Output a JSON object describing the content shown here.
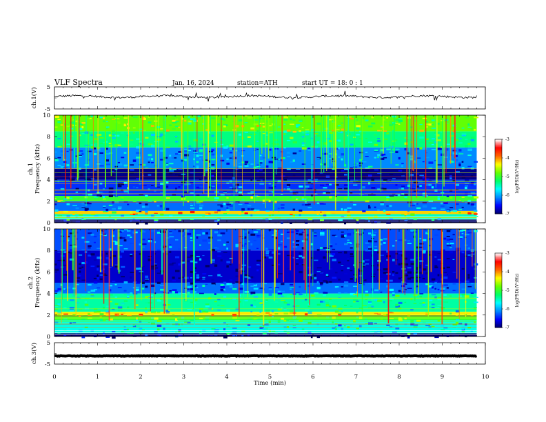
{
  "header": {
    "title": "VLF  Spectra",
    "date": "Jan. 16, 2024",
    "station": "station=ATH",
    "start_ut": "start  UT  =   18: 0  : 1"
  },
  "colors": {
    "spectrogram_scale": [
      "#000066",
      "#0000ff",
      "#0088ff",
      "#00ffff",
      "#00ff66",
      "#66ff00",
      "#ffff00",
      "#ff6600",
      "#ff0000",
      "#ffffff"
    ],
    "trace": "#000000"
  },
  "chart_data": [
    {
      "id": "ch1-waveform",
      "type": "line",
      "ylabel": "ch.1(V)",
      "ylim": [
        -5,
        5
      ],
      "y_ticks": [
        "5",
        "-5"
      ],
      "xlim": [
        0,
        10
      ],
      "approx_level": 0.6
    },
    {
      "id": "ch1-spectrogram",
      "type": "heatmap",
      "ylabel": "ch.1\nFrequency (kHz)",
      "ylabel_lines": [
        "ch.1",
        "Frequency (kHz)"
      ],
      "ylim": [
        0,
        10
      ],
      "y_ticks": [
        "0",
        "2",
        "4",
        "6",
        "8",
        "10"
      ],
      "xlim": [
        0,
        9.8
      ],
      "colorbar": {
        "label": "log(PSD)(V²/Hz)",
        "range": [
          -7,
          -3
        ],
        "ticks": [
          "-3",
          "-4",
          "-5",
          "-6",
          "-7"
        ]
      },
      "bands": [
        {
          "f_low": 0.0,
          "f_high": 0.3,
          "log_psd": -7.0
        },
        {
          "f_low": 0.3,
          "f_high": 0.8,
          "log_psd": -5.5
        },
        {
          "f_low": 0.8,
          "f_high": 1.1,
          "log_psd": -4.2
        },
        {
          "f_low": 1.1,
          "f_high": 2.0,
          "log_psd": -6.2
        },
        {
          "f_low": 2.0,
          "f_high": 2.5,
          "log_psd": -5.0
        },
        {
          "f_low": 2.5,
          "f_high": 4.0,
          "log_psd": -6.4
        },
        {
          "f_low": 4.0,
          "f_high": 5.0,
          "log_psd": -6.9
        },
        {
          "f_low": 5.0,
          "f_high": 7.0,
          "log_psd": -6.1
        },
        {
          "f_low": 7.0,
          "f_high": 8.5,
          "log_psd": -5.3
        },
        {
          "f_low": 8.5,
          "f_high": 10.0,
          "log_psd": -4.8
        }
      ],
      "sferic_density": 0.55
    },
    {
      "id": "ch2-spectrogram",
      "type": "heatmap",
      "ylabel": "ch.2\nFrequency (kHz)",
      "ylabel_lines": [
        "ch.2",
        "Frequency (kHz)"
      ],
      "ylim": [
        0,
        10
      ],
      "y_ticks": [
        "0",
        "2",
        "4",
        "6",
        "8",
        "10"
      ],
      "xlim": [
        0,
        9.8
      ],
      "colorbar": {
        "label": "log(PSD)(V²/Hz)",
        "range": [
          -7,
          -3
        ],
        "ticks": [
          "-3",
          "-4",
          "-5",
          "-6",
          "-7"
        ]
      },
      "bands": [
        {
          "f_low": 0.0,
          "f_high": 0.3,
          "log_psd": -7.0
        },
        {
          "f_low": 0.3,
          "f_high": 1.5,
          "log_psd": -5.6
        },
        {
          "f_low": 1.5,
          "f_high": 2.0,
          "log_psd": -5.0
        },
        {
          "f_low": 2.0,
          "f_high": 2.3,
          "log_psd": -4.3
        },
        {
          "f_low": 2.3,
          "f_high": 4.0,
          "log_psd": -5.4
        },
        {
          "f_low": 4.0,
          "f_high": 5.0,
          "log_psd": -6.2
        },
        {
          "f_low": 5.0,
          "f_high": 8.0,
          "log_psd": -6.7
        },
        {
          "f_low": 8.0,
          "f_high": 10.0,
          "log_psd": -6.3
        }
      ],
      "sferic_density": 0.5
    },
    {
      "id": "ch3-waveform",
      "type": "line",
      "ylabel": "ch.3(V)",
      "ylim": [
        -5,
        5
      ],
      "y_ticks": [
        "5",
        "-5"
      ],
      "xlim": [
        0,
        10
      ],
      "approx_level": -1.2
    }
  ],
  "x_axis": {
    "label": "Time  (min)",
    "range": [
      0,
      10
    ],
    "ticks": [
      "0",
      "1",
      "2",
      "3",
      "4",
      "5",
      "6",
      "7",
      "8",
      "9",
      "10"
    ]
  }
}
